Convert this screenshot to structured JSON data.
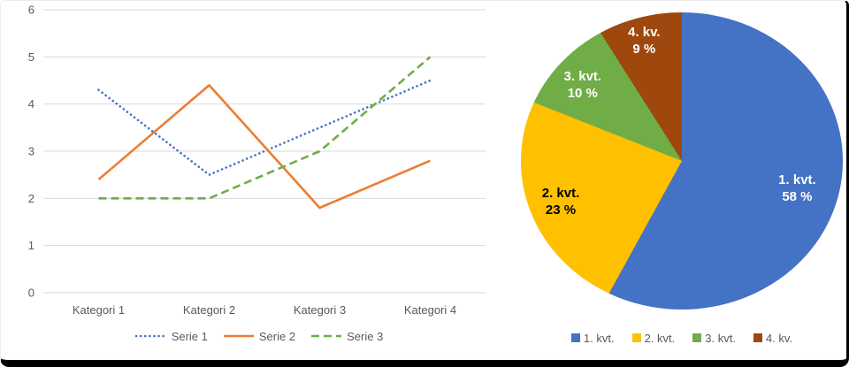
{
  "chart_data": [
    {
      "id": "line-chart",
      "type": "line",
      "title": "",
      "categories": [
        "Kategori 1",
        "Kategori 2",
        "Kategori 3",
        "Kategori 4"
      ],
      "series": [
        {
          "name": "Serie 1",
          "values": [
            4.3,
            2.5,
            3.5,
            4.5
          ],
          "color": "#4472C4",
          "line_style": "dotted"
        },
        {
          "name": "Serie 2",
          "values": [
            2.4,
            4.4,
            1.8,
            2.8
          ],
          "color": "#ED7D31",
          "line_style": "solid"
        },
        {
          "name": "Serie 3",
          "values": [
            2.0,
            2.0,
            3.0,
            5.0
          ],
          "color": "#70AD47",
          "line_style": "dashed"
        }
      ],
      "xlabel": "",
      "ylabel": "",
      "ylim": [
        0,
        6
      ],
      "y_ticks": [
        0,
        1,
        2,
        3,
        4,
        5,
        6
      ],
      "grid": true,
      "gridline_color": "#D9D9D9",
      "axis_text_color": "#595959",
      "legend_position": "bottom"
    },
    {
      "id": "pie-chart",
      "type": "pie",
      "title": "",
      "slices": [
        {
          "label": "1. kvt.",
          "percent": 58,
          "value_text": "58 %",
          "color": "#4472C4",
          "label_color": "#FFFFFF",
          "label_radius": 0.74
        },
        {
          "label": "2. kvt.",
          "percent": 23,
          "value_text": "23 %",
          "color": "#FFC000",
          "label_color": "#000000",
          "label_radius": 0.8
        },
        {
          "label": "3. kvt.",
          "percent": 10,
          "value_text": "10 %",
          "color": "#70AD47",
          "label_color": "#FFFFFF",
          "label_radius": 0.8
        },
        {
          "label": "4. kv.",
          "percent": 9,
          "value_text": "9 %",
          "color": "#9E480E",
          "label_color": "#FFFFFF",
          "label_radius": 0.84
        }
      ],
      "start_angle_deg": 0,
      "direction": "clockwise",
      "legend_position": "bottom"
    }
  ]
}
